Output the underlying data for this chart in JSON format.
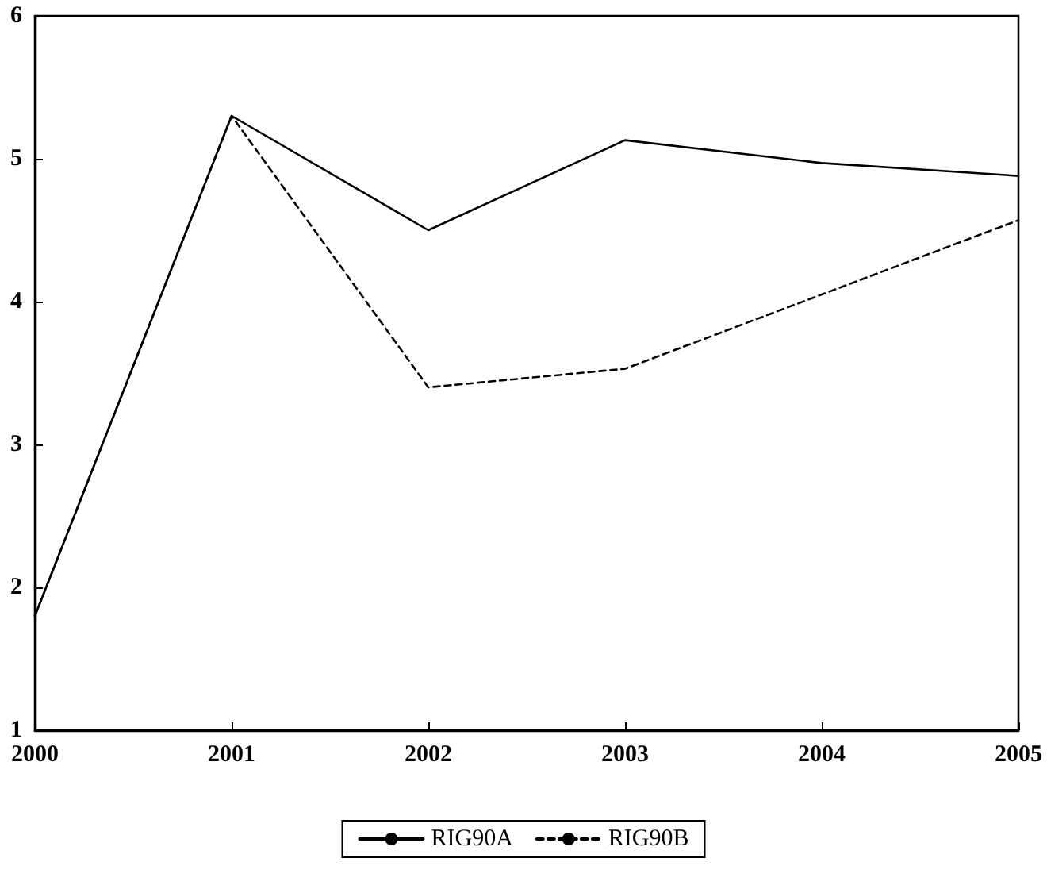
{
  "chart_data": {
    "type": "line",
    "categories": [
      "2000",
      "2001",
      "2002",
      "2003",
      "2004",
      "2005"
    ],
    "series": [
      {
        "name": "RIG90A",
        "color": "#000000",
        "line_style": "solid",
        "values": [
          1.8,
          5.3,
          4.5,
          5.13,
          4.97,
          4.88
        ]
      },
      {
        "name": "RIG90B",
        "color": "#000000",
        "line_style": "dashed",
        "values": [
          1.8,
          5.3,
          3.4,
          3.53,
          4.05,
          4.57
        ]
      }
    ],
    "ylim": [
      1,
      6
    ],
    "yticks": [
      1,
      2,
      3,
      4,
      5,
      6
    ],
    "grid": false,
    "legend": "bottom",
    "marker": "none"
  }
}
